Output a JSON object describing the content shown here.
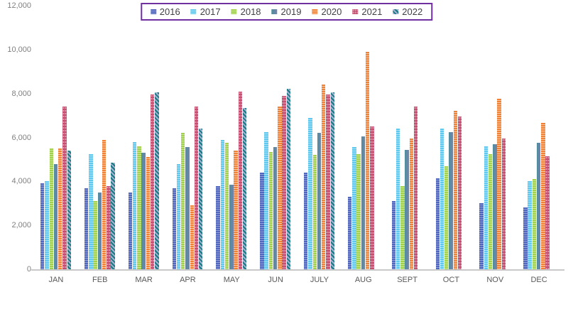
{
  "chart_data": {
    "type": "bar",
    "title": "",
    "categories": [
      "JAN",
      "FEB",
      "MAR",
      "APR",
      "MAY",
      "JUN",
      "JULY",
      "AUG",
      "SEPT",
      "OCT",
      "NOV",
      "DEC"
    ],
    "series": [
      {
        "name": "2016",
        "pattern": "hstripe",
        "color": "#5167bd",
        "color2": "#93a2dc",
        "values": [
          3900,
          3700,
          3500,
          3700,
          3800,
          4400,
          4400,
          3300,
          3100,
          4150,
          3000,
          2800
        ]
      },
      {
        "name": "2017",
        "pattern": "hstripe",
        "color": "#5fc8ec",
        "color2": "#abe3f8",
        "values": [
          4000,
          5250,
          5800,
          4800,
          5900,
          6250,
          6900,
          5550,
          6400,
          6400,
          5600,
          4000
        ]
      },
      {
        "name": "2018",
        "pattern": "hstripe",
        "color": "#a2d24d",
        "color2": "#cbe899",
        "values": [
          5500,
          3100,
          5600,
          6200,
          5750,
          5350,
          5200,
          5250,
          3800,
          4700,
          5250,
          4100
        ]
      },
      {
        "name": "2019",
        "pattern": "gradient",
        "color": "#4e8f9e",
        "color2": "#7482aa",
        "values": [
          4800,
          3500,
          5300,
          5550,
          3850,
          5550,
          6200,
          6050,
          5450,
          6250,
          5700,
          5750
        ]
      },
      {
        "name": "2020",
        "pattern": "hstripe",
        "color": "#f08238",
        "color2": "#f9c9a3",
        "values": [
          5500,
          5900,
          5100,
          2900,
          5400,
          7400,
          8400,
          9900,
          5950,
          7200,
          7750,
          6650
        ]
      },
      {
        "name": "2021",
        "pattern": "dots",
        "color": "#c4506f",
        "color2": "#e79fb7",
        "values": [
          7400,
          3800,
          7950,
          7400,
          8100,
          7900,
          7950,
          6500,
          7400,
          6950,
          5950,
          5150
        ]
      },
      {
        "name": "2022",
        "pattern": "dstripe",
        "color": "#157c80",
        "color2": "#a6aed4",
        "values": [
          5400,
          4850,
          8050,
          6400,
          7350,
          8200,
          8050,
          null,
          null,
          null,
          null,
          null
        ]
      }
    ],
    "y_axis": {
      "min": 0,
      "max": 12000,
      "step": 2000,
      "tick_labels": [
        "0",
        "2,000",
        "4,000",
        "6,000",
        "8,000",
        "10,000",
        "12,000"
      ]
    },
    "legend_position": "top",
    "grid": false,
    "colors": {
      "legend_border": "#7030a0",
      "y_label_text": "#808080",
      "x_label_text": "#595959",
      "legend_text": "#3f3f46",
      "baseline": "#c9c9c9",
      "background": "#ffffff"
    }
  }
}
